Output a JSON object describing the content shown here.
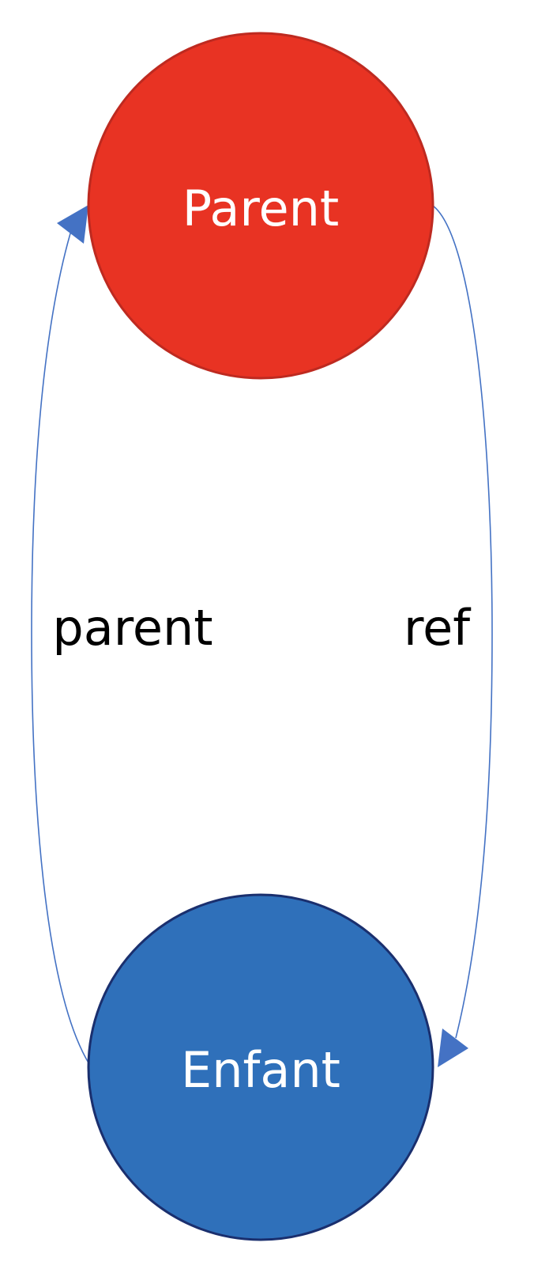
{
  "nodes": {
    "parent": {
      "label": "Parent",
      "fill": "#E83323",
      "stroke": "#BE2A20"
    },
    "child": {
      "label": "Enfant",
      "fill": "#2F70BA",
      "stroke": "#1A2F6E"
    }
  },
  "edges": {
    "child_to_parent": {
      "label": "parent",
      "color": "#4472C4"
    },
    "parent_to_child": {
      "label": "ref",
      "color": "#4472C4"
    }
  }
}
